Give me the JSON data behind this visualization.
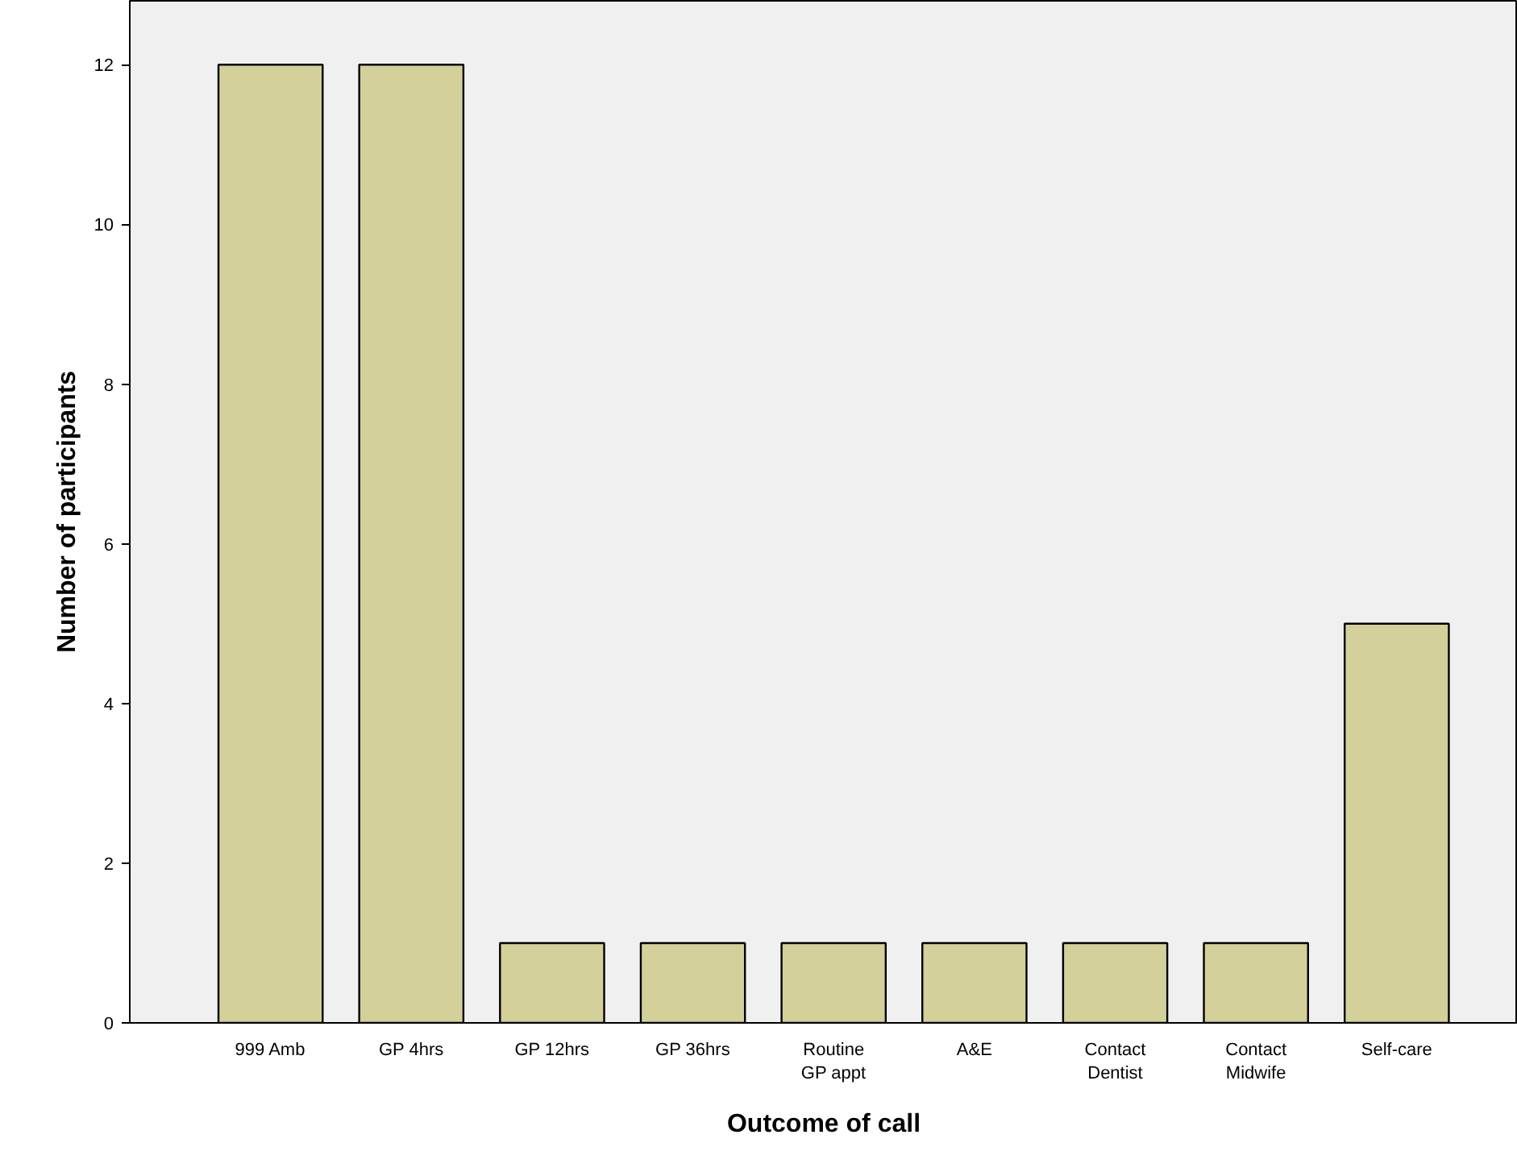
{
  "chart_data": {
    "type": "bar",
    "xlabel": "Outcome of call",
    "ylabel": "Number of participants",
    "categories": [
      "999 Amb",
      "GP 4hrs",
      "GP 12hrs",
      "GP 36hrs",
      "Routine\nGP appt",
      "A&E",
      "Contact\nDentist",
      "Contact\nMidwife",
      "Self-care"
    ],
    "values": [
      12,
      12,
      1,
      1,
      1,
      1,
      1,
      1,
      5
    ],
    "color": "#d4d09a",
    "ylim": [
      0,
      12.8
    ],
    "yticks": [
      0,
      2,
      4,
      6,
      8,
      10,
      12
    ],
    "grid": false
  }
}
